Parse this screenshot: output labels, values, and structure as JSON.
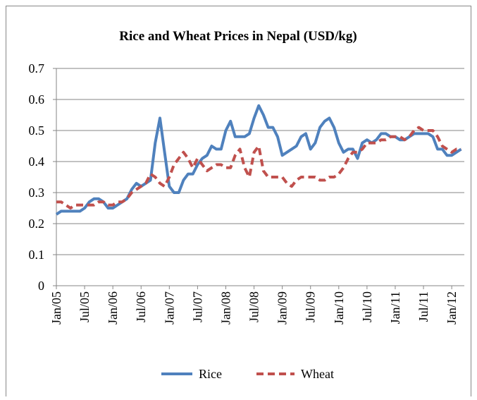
{
  "chart_data": {
    "type": "line",
    "title": "Rice and Wheat Prices in Nepal (USD/kg)",
    "categories": [
      "Jan/05",
      null,
      null,
      null,
      null,
      null,
      "Jul/05",
      null,
      null,
      null,
      null,
      null,
      "Jan/06",
      null,
      null,
      null,
      null,
      null,
      "Jul/06",
      null,
      null,
      null,
      null,
      null,
      "Jan/07",
      null,
      null,
      null,
      null,
      null,
      "Jul/07",
      null,
      null,
      null,
      null,
      null,
      "Jan/08",
      null,
      null,
      null,
      null,
      null,
      "Jul/08",
      null,
      null,
      null,
      null,
      null,
      "Jan/09",
      null,
      null,
      null,
      null,
      null,
      "Jul/09",
      null,
      null,
      null,
      null,
      null,
      "Jan/10",
      null,
      null,
      null,
      null,
      null,
      "Jul/10",
      null,
      null,
      null,
      null,
      null,
      "Jan/11",
      null,
      null,
      null,
      null,
      null,
      "Jul/11",
      null,
      null,
      null,
      null,
      null,
      "Jan/12",
      null,
      null
    ],
    "series": [
      {
        "name": "Rice",
        "color": "#4f81bd",
        "dashed": false,
        "values": [
          0.23,
          0.24,
          0.24,
          0.24,
          0.24,
          0.24,
          0.25,
          0.27,
          0.28,
          0.28,
          0.27,
          0.25,
          0.25,
          0.26,
          0.27,
          0.28,
          0.31,
          0.33,
          0.32,
          0.33,
          0.34,
          0.46,
          0.54,
          0.43,
          0.32,
          0.3,
          0.3,
          0.34,
          0.36,
          0.36,
          0.39,
          0.41,
          0.42,
          0.45,
          0.44,
          0.44,
          0.5,
          0.53,
          0.48,
          0.48,
          0.48,
          0.49,
          0.54,
          0.58,
          0.55,
          0.51,
          0.51,
          0.48,
          0.42,
          0.43,
          0.44,
          0.45,
          0.48,
          0.49,
          0.44,
          0.46,
          0.51,
          0.53,
          0.54,
          0.51,
          0.46,
          0.43,
          0.44,
          0.44,
          0.41,
          0.46,
          0.47,
          0.46,
          0.47,
          0.49,
          0.49,
          0.48,
          0.48,
          0.47,
          0.47,
          0.48,
          0.49,
          0.49,
          0.49,
          0.49,
          0.48,
          0.44,
          0.44,
          0.42,
          0.42,
          0.43,
          0.44
        ]
      },
      {
        "name": "Wheat",
        "color": "#c0504d",
        "dashed": true,
        "values": [
          0.27,
          0.27,
          0.26,
          0.25,
          0.26,
          0.26,
          0.26,
          0.26,
          0.26,
          0.27,
          0.27,
          0.26,
          0.26,
          0.27,
          0.27,
          0.28,
          0.3,
          0.31,
          0.32,
          0.33,
          0.36,
          0.35,
          0.33,
          0.32,
          0.35,
          0.39,
          0.41,
          0.43,
          0.41,
          0.38,
          0.41,
          0.39,
          0.37,
          0.38,
          0.39,
          0.39,
          0.38,
          0.38,
          0.42,
          0.44,
          0.38,
          0.35,
          0.43,
          0.45,
          0.37,
          0.35,
          0.35,
          0.35,
          0.35,
          0.33,
          0.32,
          0.34,
          0.35,
          0.35,
          0.35,
          0.35,
          0.34,
          0.34,
          0.35,
          0.35,
          0.36,
          0.38,
          0.41,
          0.43,
          0.43,
          0.44,
          0.46,
          0.46,
          0.46,
          0.47,
          0.47,
          0.48,
          0.48,
          0.48,
          0.47,
          0.48,
          0.5,
          0.51,
          0.5,
          0.5,
          0.5,
          0.48,
          0.45,
          0.44,
          0.43,
          0.44,
          0.44
        ]
      }
    ],
    "ylim": [
      0,
      0.7
    ],
    "yticks": [
      0,
      0.1,
      0.2,
      0.3,
      0.4,
      0.5,
      0.6,
      0.7
    ],
    "grid": true,
    "legend": "bottom"
  }
}
